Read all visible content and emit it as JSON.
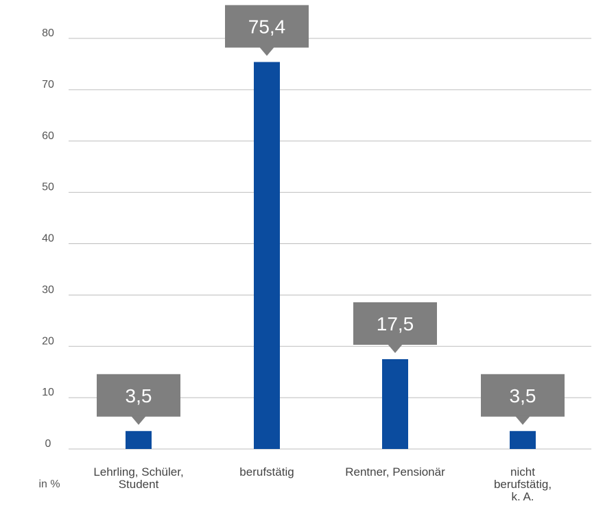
{
  "chart_data": {
    "type": "bar",
    "categories": [
      [
        "Lehrling, Schüler,",
        "Student"
      ],
      [
        "berufstätig"
      ],
      [
        "Rentner, Pensionär"
      ],
      [
        "nicht",
        "berufstätig,",
        "k. A."
      ]
    ],
    "values": [
      3.5,
      75.4,
      17.5,
      3.5
    ],
    "value_labels": [
      "3,5",
      "75,4",
      "17,5",
      "3,5"
    ],
    "ylabel": "in %",
    "yticks": [
      0,
      10,
      20,
      30,
      40,
      50,
      60,
      70,
      80
    ],
    "ylim": [
      0,
      80
    ],
    "grid": true,
    "colors": {
      "bar": "#0b4c9f",
      "callout": "#7f7f7f",
      "gridline": "#bdbdbd"
    }
  }
}
